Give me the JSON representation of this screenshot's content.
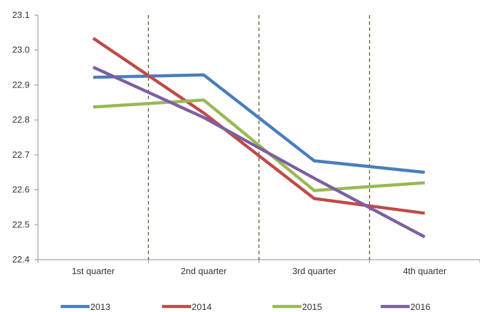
{
  "chart_data": {
    "type": "line",
    "categories": [
      "1st quarter",
      "2nd quarter",
      "3rd quarter",
      "4th quarter"
    ],
    "ylim": [
      22.4,
      23.1
    ],
    "yticks": [
      22.4,
      22.5,
      22.6,
      22.7,
      22.8,
      22.9,
      23.0,
      23.1
    ],
    "ytick_labels": [
      "22.4",
      "22.5",
      "22.6",
      "22.7",
      "22.8",
      "22.9",
      "23.0",
      "23.1"
    ],
    "grid": "vertical dashed separators between categories",
    "legend_position": "bottom",
    "series": [
      {
        "name": "2013",
        "color": "#4A7EBB",
        "values": [
          22.922,
          22.929,
          22.683,
          22.65
        ]
      },
      {
        "name": "2014",
        "color": "#BE4B48",
        "values": [
          23.034,
          22.82,
          22.575,
          22.533
        ]
      },
      {
        "name": "2015",
        "color": "#98B954",
        "values": [
          22.837,
          22.857,
          22.598,
          22.62
        ]
      },
      {
        "name": "2016",
        "color": "#7D5FA0",
        "values": [
          22.951,
          22.807,
          22.633,
          22.465
        ]
      }
    ]
  }
}
